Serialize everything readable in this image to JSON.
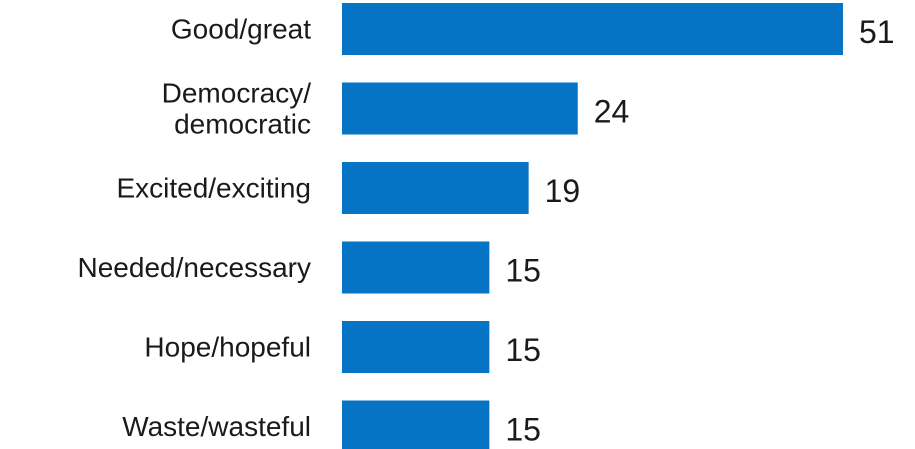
{
  "chart_data": {
    "type": "bar",
    "orientation": "horizontal",
    "categories": [
      [
        "Good/great"
      ],
      [
        "Democracy/",
        "democratic"
      ],
      [
        "Excited/exciting"
      ],
      [
        "Needed/necessary"
      ],
      [
        "Hope/hopeful"
      ],
      [
        "Waste/wasteful"
      ]
    ],
    "values": [
      51,
      24,
      19,
      15,
      15,
      15
    ],
    "value_labels": [
      "51",
      "24",
      "19",
      "15",
      "15",
      "15"
    ],
    "bar_color": "#0673C5",
    "grid": false,
    "legend": "none"
  }
}
